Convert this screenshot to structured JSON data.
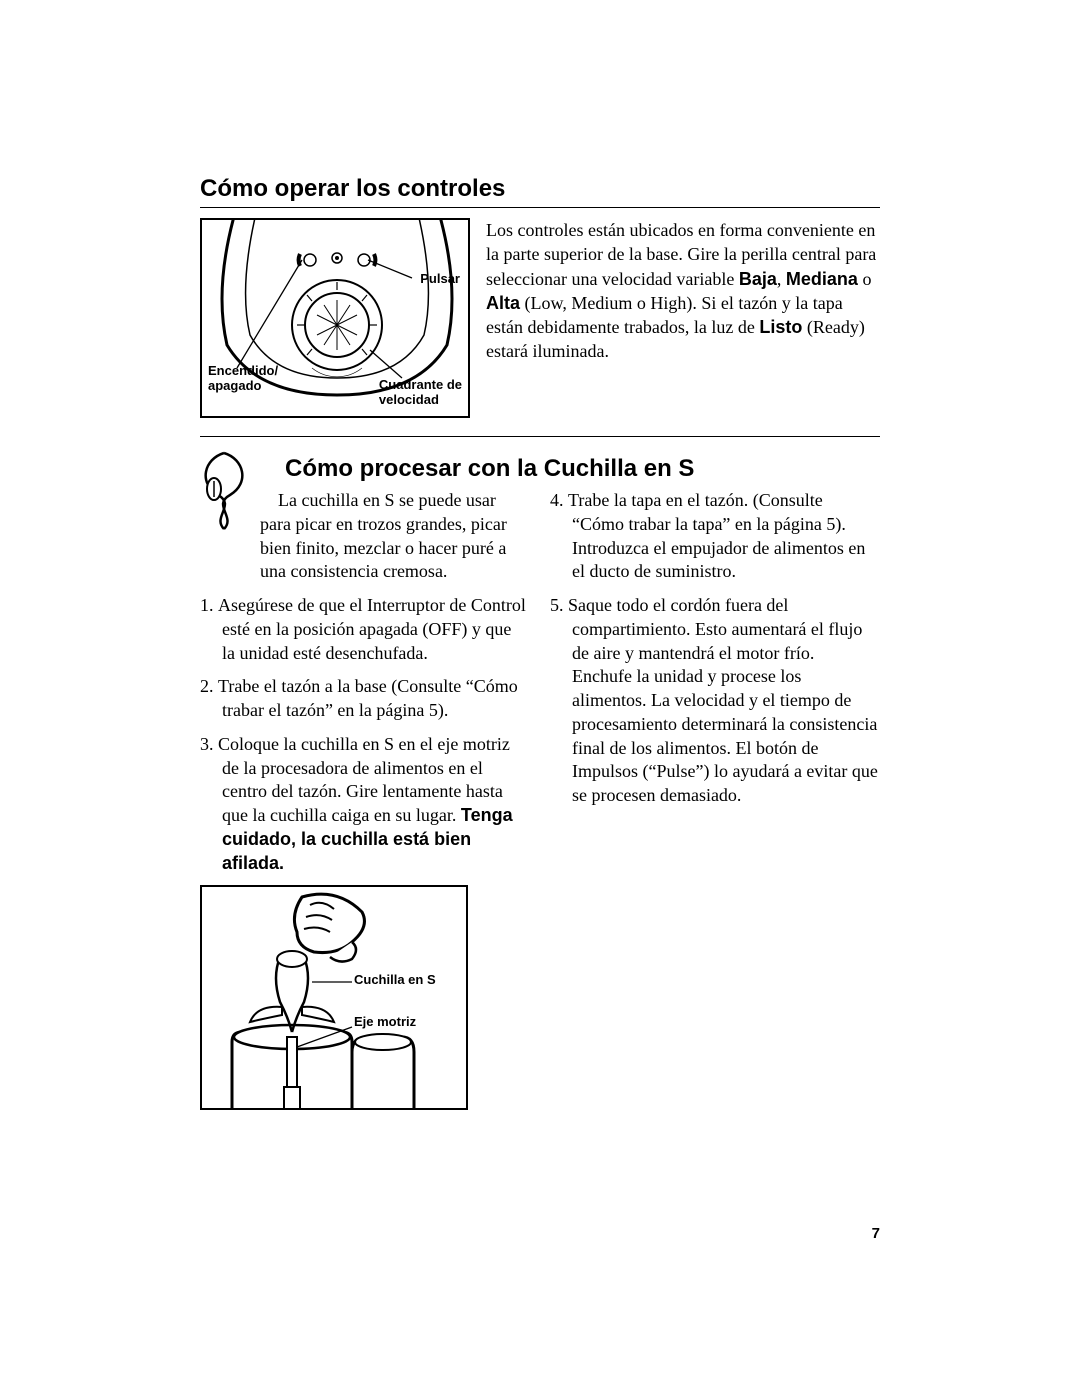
{
  "page_number": "7",
  "section1": {
    "title": "Cómo operar los controles",
    "figure_labels": {
      "pulsar": "Pulsar",
      "encendido": "Encendido/\napagado",
      "cuadrante": "Cuadrante de\nvelocidad"
    },
    "body_html": "Los controles están ubicados en forma conveniente en la parte superior de la base. Gire la perilla central para seleccionar una velocidad variable <b class='bold'>Baja</b>, <b class='bold'>Mediana</b> o <b class='bold'>Alta</b> (Low, Medium o High). Si el tazón y la tapa están debidamente trabados, la luz de <b class='bold'>Listo</b> (Ready) estará iluminada."
  },
  "section2": {
    "title": "Cómo procesar con la Cuchilla en S",
    "intro": "La cuchilla en S se puede usar para picar en trozos grandes, picar bien finito, mezclar o hacer puré a una consistencia cremosa.",
    "left_steps": [
      {
        "n": "1.",
        "text": "Asegúrese de que el Interruptor de Control esté en la posición apagada (OFF) y que la unidad esté desenchufada."
      },
      {
        "n": "2.",
        "text": "Trabe el tazón a la base (Consulte “Cómo trabar el tazón” en la página 5)."
      },
      {
        "n": "3.",
        "text_html": "Coloque la cuchilla en S en el eje motriz de la procesadora de alimentos en el centro del tazón. Gire lentamente hasta que la cuchilla caiga en su lugar. <b class='bold'>Tenga cuidado, la cuchilla está bien afilada.</b>"
      }
    ],
    "right_steps": [
      {
        "n": "4.",
        "text": "Trabe la tapa en el tazón. (Consulte “Cómo trabar la tapa” en la página 5). Introduzca el empujador de alimentos en el ducto de suministro."
      },
      {
        "n": "5.",
        "text": "Saque todo el cordón fuera del compartimiento. Esto aumentará el flujo de aire y mantendrá el motor frío. Enchufe la unidad y procese los alimentos. La velocidad y el tiempo de procesamiento determinará la consistencia final de los alimentos. El botón de Impulsos (“Pulse”) lo ayudará a evitar que se procesen demasiado."
      }
    ],
    "figure_labels": {
      "cuchilla": "Cuchilla en S",
      "eje": "Eje motriz"
    }
  },
  "colors": {
    "text": "#000000",
    "bg": "#ffffff",
    "rule": "#000000"
  }
}
